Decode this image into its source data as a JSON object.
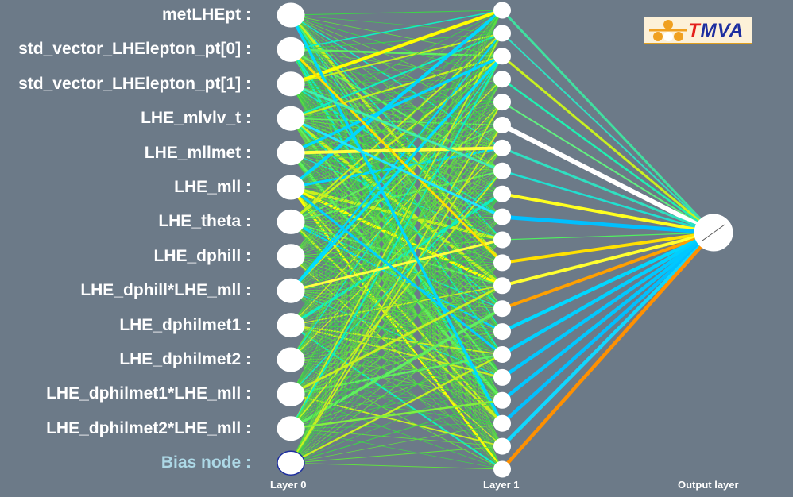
{
  "inputs": [
    "metLHEpt :",
    "std_vector_LHElepton_pt[0] :",
    "std_vector_LHElepton_pt[1] :",
    "LHE_mlvlv_t :",
    "LHE_mllmet :",
    "LHE_mll :",
    "LHE_theta :",
    "LHE_dphill :",
    "LHE_dphill*LHE_mll :",
    "LHE_dphilmet1 :",
    "LHE_dphilmet2 :",
    "LHE_dphilmet1*LHE_mll :",
    "LHE_dphilmet2*LHE_mll :",
    "Bias node :"
  ],
  "layers": [
    "Layer 0",
    "Layer 1",
    "Output layer"
  ],
  "logo": {
    "t": "T",
    "rest": "MVA"
  },
  "hidden_node_count": 21,
  "colors": {
    "background": "#6c7a88",
    "node": "#ffffff",
    "bias_label": "#add8e6",
    "weight_colormap": [
      "#00d8ff",
      "#10f0c0",
      "#60f060",
      "#c8f020",
      "#ffff00",
      "#ffb000",
      "#ff9000",
      "#ffffff"
    ]
  }
}
